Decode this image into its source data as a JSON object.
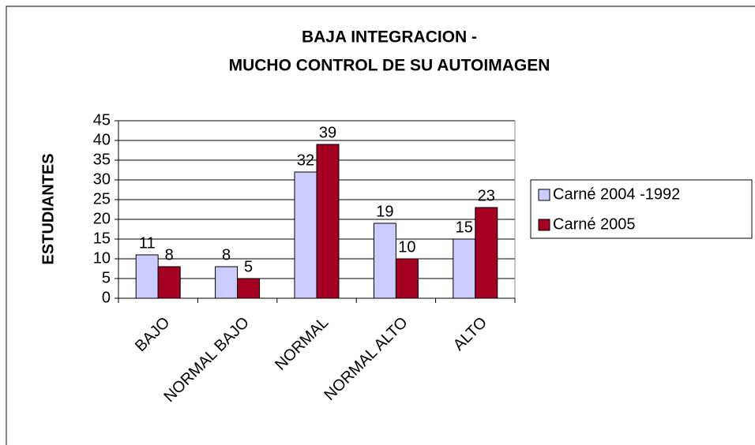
{
  "chart_data": {
    "type": "bar",
    "title": [
      "BAJA INTEGRACION -",
      "MUCHO CONTROL DE SU AUTOIMAGEN"
    ],
    "y_label": "ESTUDIANTES",
    "categories": [
      "BAJO",
      "NORMAL BAJO",
      "NORMAL",
      "NORMAL ALTO",
      "ALTO"
    ],
    "series": [
      {
        "name": "Carné 2004 -1992",
        "color": "#ccccff",
        "values": [
          11,
          8,
          32,
          19,
          15
        ]
      },
      {
        "name": "Carné 2005",
        "color": "#a50021",
        "values": [
          8,
          5,
          39,
          10,
          23
        ]
      }
    ],
    "ylim": [
      0,
      45
    ],
    "yticks": [
      0,
      5,
      10,
      15,
      20,
      25,
      30,
      35,
      40,
      45
    ],
    "grid": true,
    "legend": "right"
  }
}
